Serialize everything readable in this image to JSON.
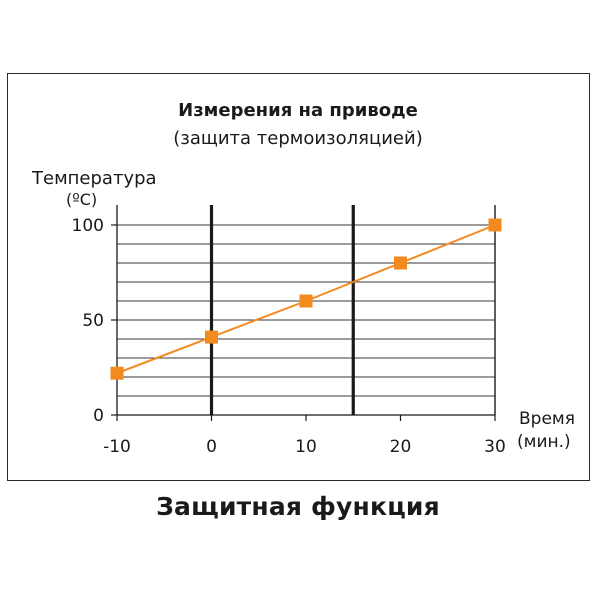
{
  "chart_data": {
    "type": "line",
    "title": "Измерения на приводе",
    "subtitle": "(защита термоизоляцией)",
    "ylabel": "Температура",
    "ylabel_unit": "(ºC)",
    "xlabel": "Время",
    "xlabel_unit": "(мин.)",
    "caption": "Защитная функция",
    "x": [
      -10,
      0,
      10,
      20,
      30
    ],
    "y": [
      22,
      41,
      60,
      80,
      100
    ],
    "x_ticks": [
      -10,
      0,
      10,
      20,
      30
    ],
    "y_ticks": [
      0,
      50,
      100
    ],
    "xlim": [
      -10,
      30
    ],
    "ylim": [
      0,
      100
    ],
    "grid": true,
    "line_color": "#f28a1f",
    "marker_color": "#f28a1f"
  }
}
